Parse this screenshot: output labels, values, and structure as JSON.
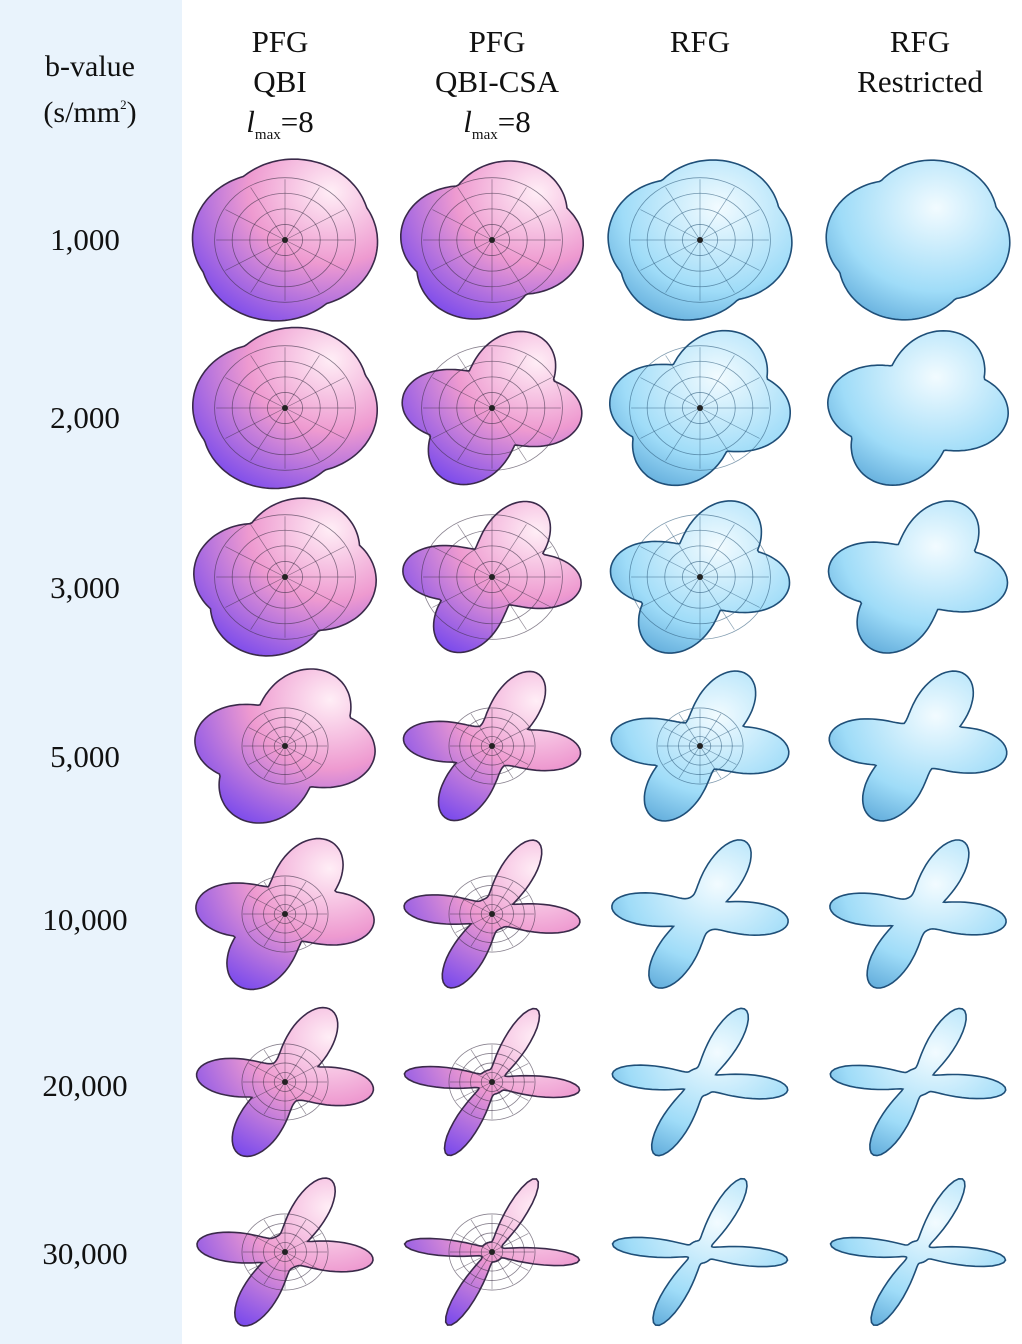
{
  "sidebar_header": {
    "line1": "b-value",
    "line2_prefix": "(s/mm",
    "line2_sup": "2",
    "line2_suffix": ")"
  },
  "columns": [
    {
      "line1": "PFG",
      "line2": "QBI",
      "lmax_l": "l",
      "lmax_sub": "max",
      "lmax_eq": "=8"
    },
    {
      "line1": "PFG",
      "line2": "QBI-CSA",
      "lmax_l": "l",
      "lmax_sub": "max",
      "lmax_eq": "=8"
    },
    {
      "line1": "RFG",
      "line2": ""
    },
    {
      "line1": "RFG",
      "line2": "Restricted"
    }
  ],
  "rows": [
    "1,000",
    "2,000",
    "3,000",
    "5,000",
    "10,000",
    "20,000",
    "30,000"
  ],
  "colors": {
    "sidebar_bg": "#e9f3fc",
    "pfg_light": "#ffe2f0",
    "pfg_mid": "#e67bc6",
    "pfg_dark": "#6a3ff0",
    "rfg_light": "#e6f8ff",
    "rfg_mid": "#7fd0f5",
    "rfg_dark": "#2d7fb8"
  }
}
